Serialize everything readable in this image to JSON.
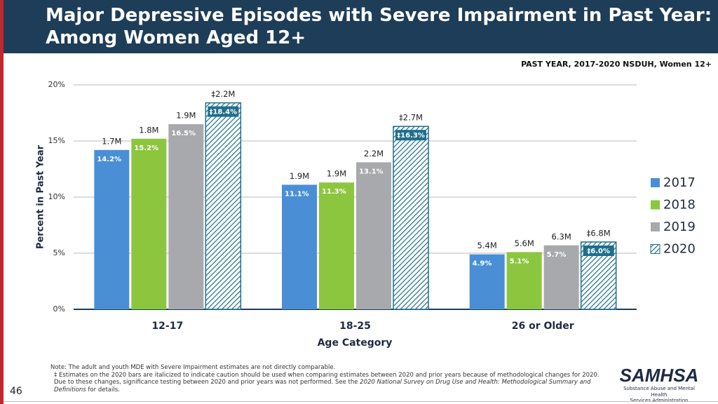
{
  "header": {
    "title_lines": [
      "Major Depressive Episodes with Severe Impairment in Past Year:",
      "Among Women Aged 12+"
    ]
  },
  "chart_data": {
    "type": "bar",
    "subtitle": "PAST YEAR, 2017-2020 NSDUH, Women 12+",
    "y_label": "Percent in Past Year",
    "x_label": "Age Category",
    "categories": [
      "12-17",
      "18-25",
      "26 or Older"
    ],
    "ylim": [
      0,
      20
    ],
    "yticks": [
      {
        "value": 0,
        "label": "0%"
      },
      {
        "value": 5,
        "label": "5%"
      },
      {
        "value": 10,
        "label": "10%"
      },
      {
        "value": 15,
        "label": "15%"
      },
      {
        "value": 20,
        "label": "20%"
      }
    ],
    "grid": true,
    "legend": "right",
    "series": [
      {
        "name": "2017",
        "color": "#4a8fd6",
        "values": [
          14.2,
          11.1,
          4.9
        ],
        "value_labels": [
          "14.2%",
          "11.1%",
          "4.9%"
        ],
        "count_labels": [
          "1.7M",
          "1.9M",
          "5.4M"
        ]
      },
      {
        "name": "2018",
        "color": "#8cc63e",
        "values": [
          15.2,
          11.3,
          5.1
        ],
        "value_labels": [
          "15.2%",
          "11.3%",
          "5.1%"
        ],
        "count_labels": [
          "1.8M",
          "1.9M",
          "5.6M"
        ]
      },
      {
        "name": "2019",
        "color": "#a7a9ac",
        "values": [
          16.5,
          13.1,
          5.7
        ],
        "value_labels": [
          "16.5%",
          "13.1%",
          "5.7%"
        ],
        "count_labels": [
          "1.9M",
          "2.2M",
          "6.3M"
        ]
      },
      {
        "name": "2020",
        "color": "#1f6e8c",
        "hatch": true,
        "values": [
          18.4,
          16.3,
          6.0
        ],
        "value_labels": [
          "‡18.4%",
          "‡16.3%",
          "‡6.0%"
        ],
        "count_labels": [
          "‡2.2M",
          "‡2.7M",
          "‡6.8M"
        ]
      }
    ]
  },
  "footer": {
    "note": "Note: The adult and youth MDE with Severe Impairment estimates are not directly comparable.",
    "footnote": [
      "‡ Estimates on the 2020 bars are italicized to indicate caution should be used when comparing estimates between 2020 and prior years because of methodological changes for 2020. Due to these changes, significance testing between 2020 and prior years was not performed. See the ",
      "2020 National Survey on Drug Use and Health: Methodological Summary and Definitions",
      " for details."
    ],
    "page_number": "46",
    "logo": "SAMHSA",
    "logo_lines": [
      "Substance Abuse and Mental Health",
      "Services Administration"
    ]
  }
}
